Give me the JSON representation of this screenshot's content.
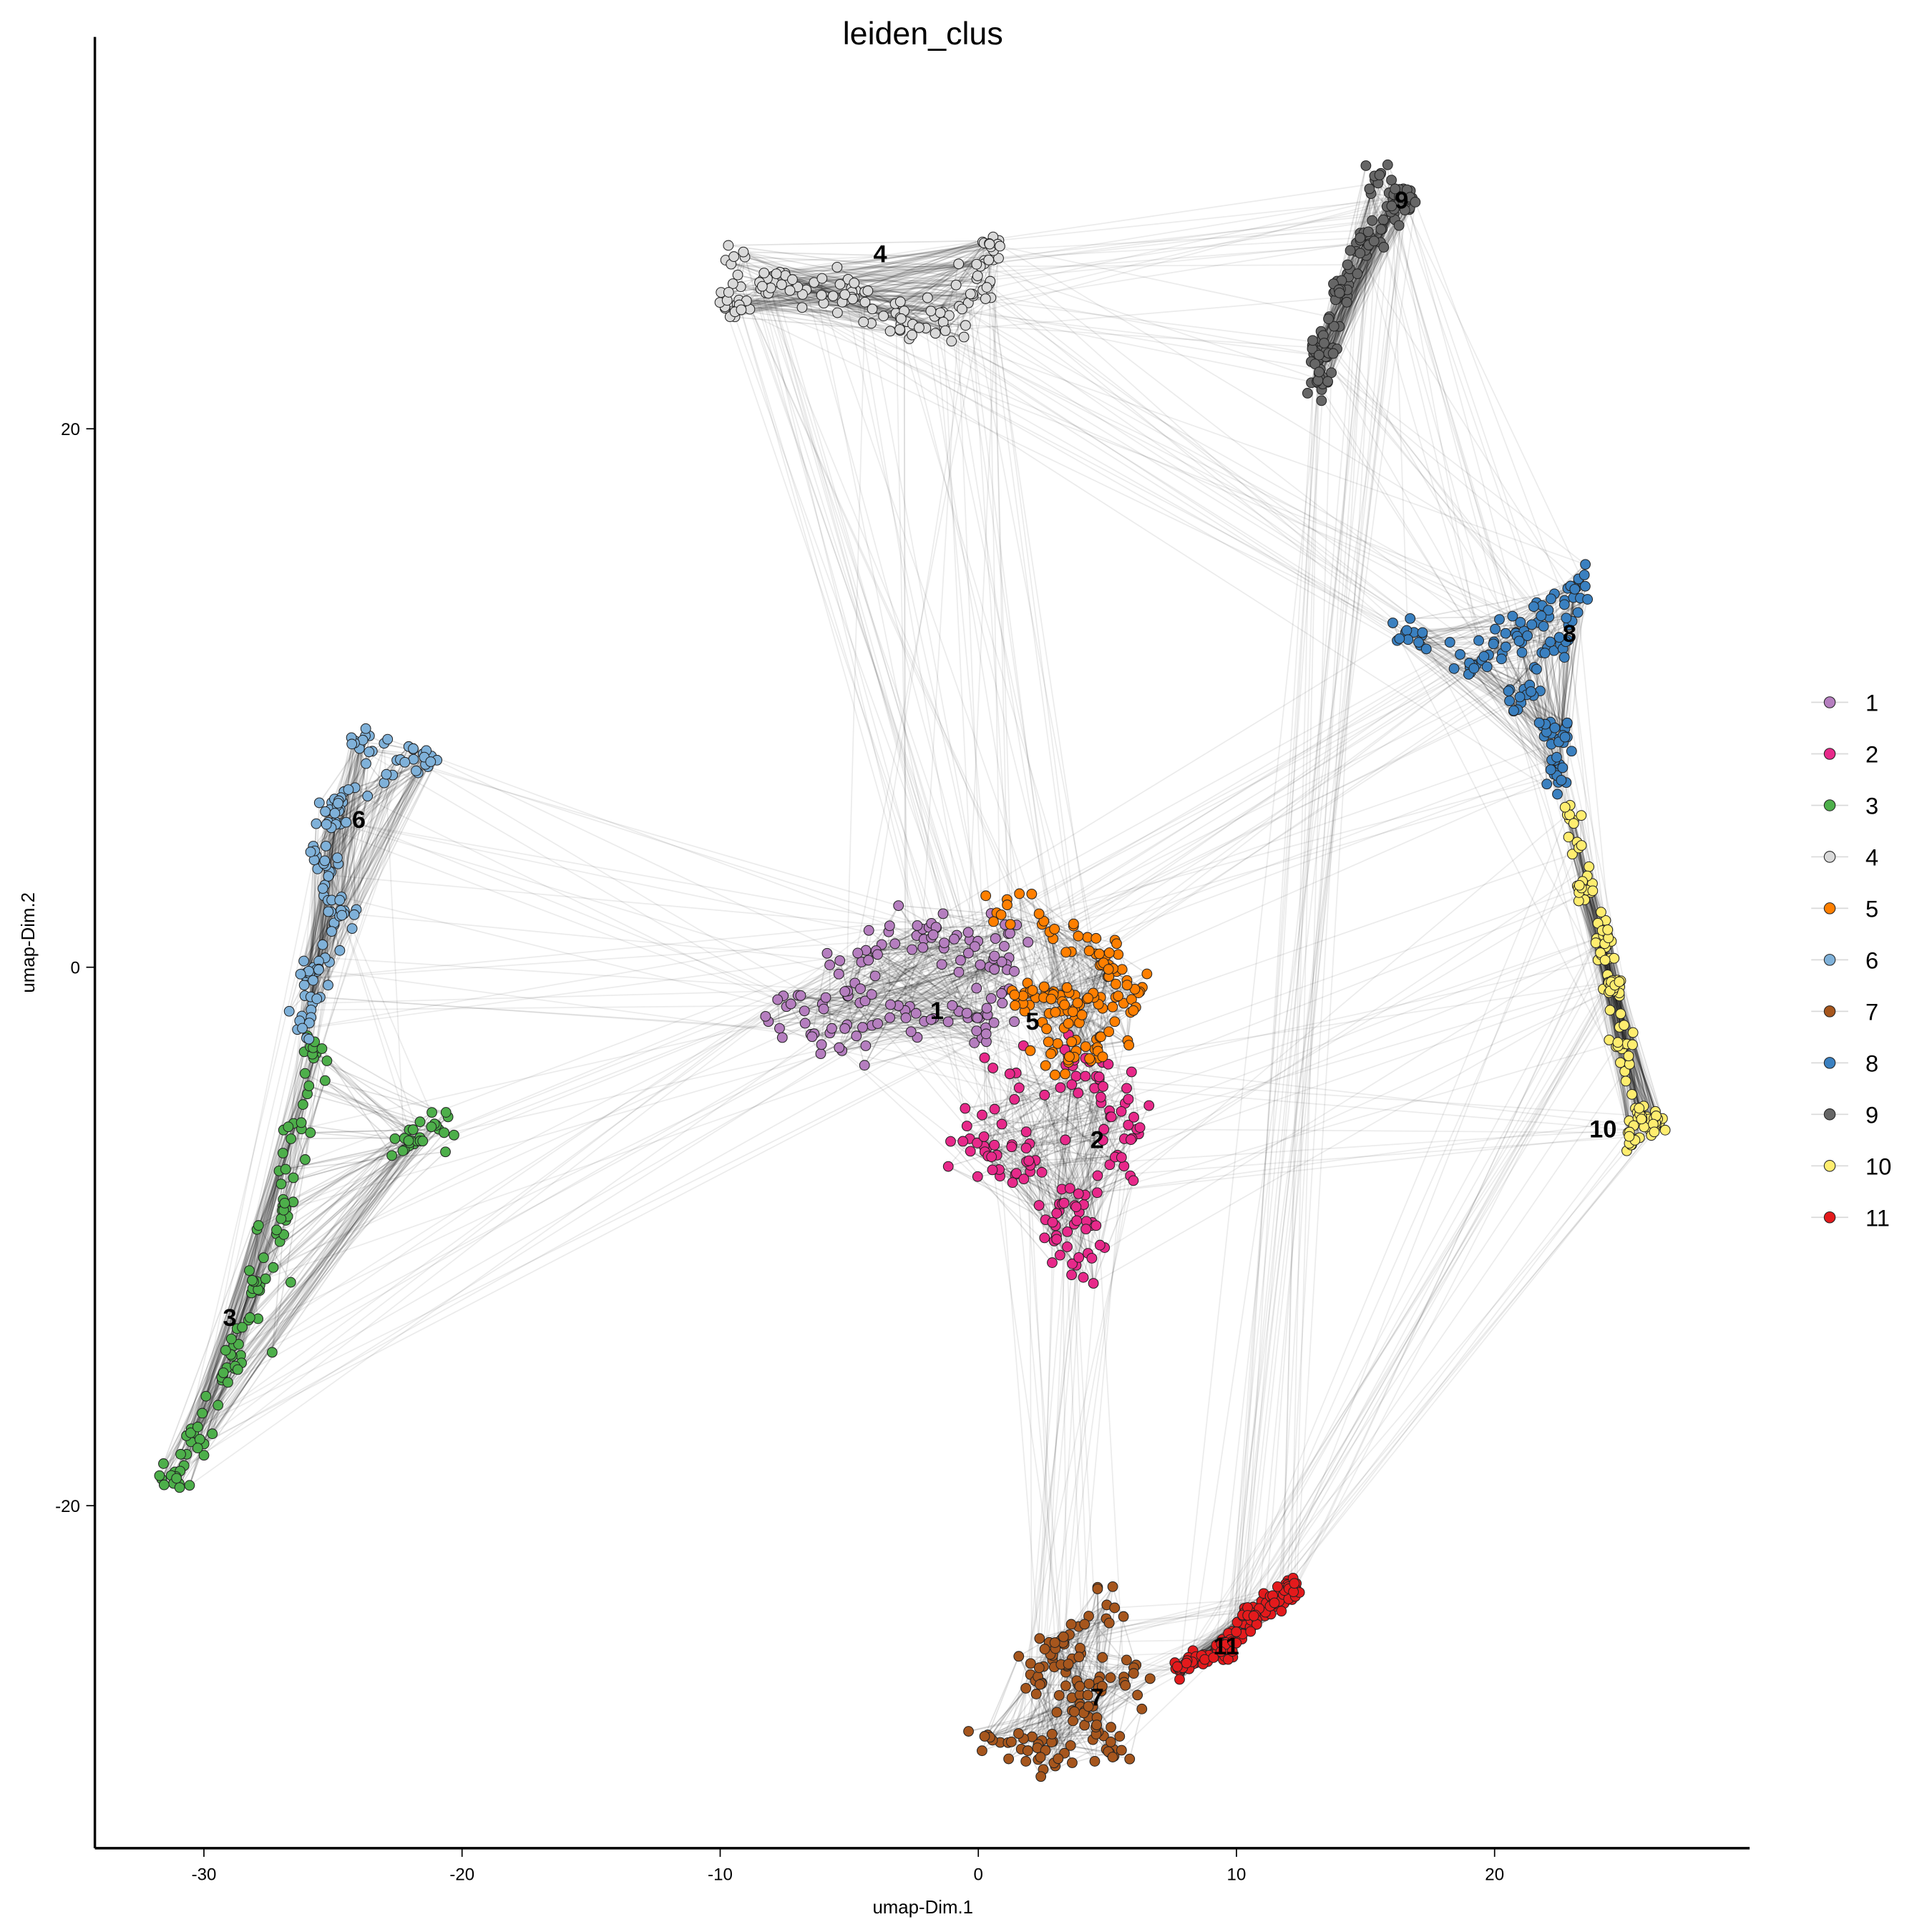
{
  "chart_data": {
    "type": "scatter",
    "title": "leiden_clus",
    "xlabel": "umap-Dim.1",
    "ylabel": "umap-Dim.2",
    "xlim": [
      -34.2,
      29.9
    ],
    "ylim": [
      -32.7,
      34.6
    ],
    "xticks": [
      -30,
      -20,
      -10,
      0,
      10,
      20
    ],
    "yticks": [
      -20,
      0,
      20
    ],
    "grid": false,
    "legend_position": "right",
    "legend": [
      "1",
      "2",
      "3",
      "4",
      "5",
      "6",
      "7",
      "8",
      "9",
      "10",
      "11"
    ],
    "clusters": [
      {
        "name": "1",
        "color": "#b57ebf",
        "label_at": [
          -1.6,
          -1.6
        ],
        "shape": [
          [
            -7.5,
            -1.5
          ],
          [
            -5,
            -0.5
          ],
          [
            -3,
            1.5
          ],
          [
            -1,
            1
          ],
          [
            1,
            0.5
          ],
          [
            0,
            -2
          ],
          [
            -3,
            -2
          ],
          [
            -6,
            -2.5
          ]
        ],
        "spread": 1.0
      },
      {
        "name": "2",
        "color": "#e7298a",
        "label_at": [
          4.6,
          -6.4
        ],
        "shape": [
          [
            1,
            -4
          ],
          [
            4,
            -4
          ],
          [
            6,
            -6
          ],
          [
            5,
            -8
          ],
          [
            3,
            -9
          ],
          [
            4,
            -10.5
          ],
          [
            0,
            -6.5
          ],
          [
            2,
            -7
          ]
        ],
        "spread": 1.1
      },
      {
        "name": "3",
        "color": "#4daf4a",
        "label_at": [
          -29,
          -13
        ],
        "shape": [
          [
            -25.7,
            -3
          ],
          [
            -26.3,
            -6
          ],
          [
            -27,
            -9
          ],
          [
            -28,
            -12
          ],
          [
            -29,
            -15
          ],
          [
            -30.2,
            -17.5
          ],
          [
            -31.2,
            -18.8
          ],
          [
            -22.1,
            -6.4
          ],
          [
            -20.9,
            -6
          ]
        ],
        "spread": 0.6
      },
      {
        "name": "4",
        "color": "#d9d9d9",
        "label_at": [
          -3.8,
          26.5
        ],
        "shape": [
          [
            -9.5,
            26.1
          ],
          [
            -9.5,
            24.5
          ],
          [
            -8,
            25.5
          ],
          [
            -5,
            25
          ],
          [
            -3,
            23.8
          ],
          [
            -1,
            24
          ],
          [
            0.5,
            26.8
          ],
          [
            0,
            25.3
          ]
        ],
        "spread": 0.7
      },
      {
        "name": "5",
        "color": "#ff7f00",
        "label_at": [
          2.1,
          -2
        ],
        "shape": [
          [
            1,
            2
          ],
          [
            3,
            1.5
          ],
          [
            5,
            0.5
          ],
          [
            6,
            -1
          ],
          [
            4,
            -1.5
          ],
          [
            2,
            -1
          ],
          [
            5,
            -3
          ],
          [
            3,
            -3
          ]
        ],
        "spread": 0.9
      },
      {
        "name": "6",
        "color": "#7fb1d9",
        "label_at": [
          -24,
          5.5
        ],
        "shape": [
          [
            -24,
            8.2
          ],
          [
            -21.4,
            7.9
          ],
          [
            -25,
            6
          ],
          [
            -25.5,
            3.9
          ],
          [
            -24.5,
            2
          ],
          [
            -25.8,
            0
          ],
          [
            -26,
            -2
          ]
        ],
        "spread": 0.6
      },
      {
        "name": "7",
        "color": "#a6561d",
        "label_at": [
          4.6,
          -27.1
        ],
        "shape": [
          [
            0.3,
            -28.6
          ],
          [
            2,
            -29
          ],
          [
            5.1,
            -29
          ],
          [
            4,
            -27.5
          ],
          [
            3,
            -25.5
          ],
          [
            5.1,
            -23.6
          ],
          [
            2,
            -26.5
          ],
          [
            6,
            -26.5
          ]
        ],
        "spread": 0.8
      },
      {
        "name": "8",
        "color": "#3a80c0",
        "label_at": [
          22.9,
          12.4
        ],
        "shape": [
          [
            16.5,
            12.4
          ],
          [
            19,
            11.5
          ],
          [
            21,
            12.5
          ],
          [
            23.2,
            14.4
          ],
          [
            22.5,
            12
          ],
          [
            21,
            10
          ],
          [
            22.5,
            8.5
          ],
          [
            22.5,
            6.9
          ]
        ],
        "spread": 0.6
      },
      {
        "name": "9",
        "color": "#666666",
        "label_at": [
          16.4,
          28.5
        ],
        "shape": [
          [
            15.5,
            29.5
          ],
          [
            16.5,
            28.5
          ],
          [
            15,
            27
          ],
          [
            14,
            25
          ],
          [
            13.3,
            23
          ],
          [
            13.2,
            21.7
          ]
        ],
        "spread": 0.5
      },
      {
        "name": "10",
        "color": "#ffed6f",
        "label_at": [
          24.2,
          -6
        ],
        "shape": [
          [
            23,
            5.7
          ],
          [
            23.5,
            3
          ],
          [
            24.3,
            1
          ],
          [
            24.6,
            -0.7
          ],
          [
            25,
            -3
          ],
          [
            25.6,
            -5.5
          ],
          [
            26.3,
            -5.8
          ],
          [
            25.3,
            -6.5
          ]
        ],
        "spread": 0.4
      },
      {
        "name": "11",
        "color": "#e41a1c",
        "label_at": [
          9.6,
          -25.2
        ],
        "shape": [
          [
            7.9,
            -26
          ],
          [
            9.5,
            -25.3
          ],
          [
            10.5,
            -24.2
          ],
          [
            11.5,
            -23.6
          ],
          [
            12.2,
            -23.1
          ]
        ],
        "spread": 0.4
      }
    ],
    "edge_pairs": [
      [
        "1",
        "5"
      ],
      [
        "1",
        "2"
      ],
      [
        "2",
        "5"
      ],
      [
        "1",
        "4"
      ],
      [
        "4",
        "9"
      ],
      [
        "4",
        "8"
      ],
      [
        "9",
        "8"
      ],
      [
        "8",
        "10"
      ],
      [
        "10",
        "11"
      ],
      [
        "2",
        "7"
      ],
      [
        "7",
        "11"
      ],
      [
        "6",
        "1"
      ],
      [
        "6",
        "3"
      ],
      [
        "3",
        "1"
      ],
      [
        "4",
        "2"
      ],
      [
        "8",
        "1"
      ],
      [
        "10",
        "2"
      ],
      [
        "9",
        "11"
      ]
    ]
  }
}
